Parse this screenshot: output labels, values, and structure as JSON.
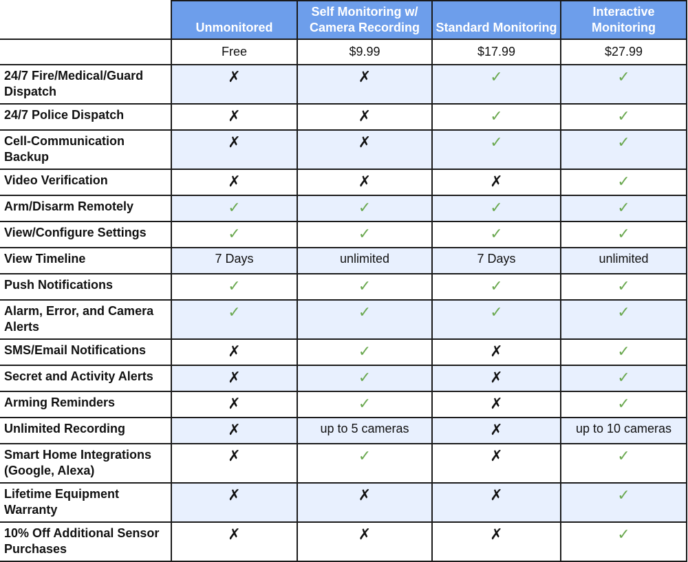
{
  "colors": {
    "header_bg": "#6d9eeb",
    "alt_row_bg": "#e8f0fe",
    "check": "#6aa84f",
    "cross": "#111111"
  },
  "icons": {
    "check": "✓",
    "x": "✗"
  },
  "plans": [
    {
      "name": "Unmonitored",
      "price": "Free"
    },
    {
      "name": "Self Monitoring w/ Camera Recording",
      "price": "$9.99"
    },
    {
      "name": "Standard Monitoring",
      "price": "$17.99"
    },
    {
      "name": "Interactive Monitoring",
      "price": "$27.99"
    }
  ],
  "features": [
    {
      "label": "24/7 Fire/Medical/Guard Dispatch",
      "values": [
        "x",
        "x",
        "check",
        "check"
      ]
    },
    {
      "label": "24/7 Police Dispatch",
      "values": [
        "x",
        "x",
        "check",
        "check"
      ]
    },
    {
      "label": "Cell-Communication Backup",
      "values": [
        "x",
        "x",
        "check",
        "check"
      ]
    },
    {
      "label": "Video Verification",
      "values": [
        "x",
        "x",
        "x",
        "check"
      ]
    },
    {
      "label": "Arm/Disarm Remotely",
      "values": [
        "check",
        "check",
        "check",
        "check"
      ]
    },
    {
      "label": "View/Configure Settings",
      "values": [
        "check",
        "check",
        "check",
        "check"
      ]
    },
    {
      "label": "View Timeline",
      "values": [
        "7 Days",
        "unlimited",
        "7 Days",
        "unlimited"
      ]
    },
    {
      "label": "Push Notifications",
      "values": [
        "check",
        "check",
        "check",
        "check"
      ]
    },
    {
      "label": "Alarm, Error, and Camera Alerts",
      "values": [
        "check",
        "check",
        "check",
        "check"
      ]
    },
    {
      "label": "SMS/Email Notifications",
      "values": [
        "x",
        "check",
        "x",
        "check"
      ]
    },
    {
      "label": "Secret and Activity Alerts",
      "values": [
        "x",
        "check",
        "x",
        "check"
      ]
    },
    {
      "label": "Arming Reminders",
      "values": [
        "x",
        "check",
        "x",
        "check"
      ]
    },
    {
      "label": "Unlimited Recording",
      "values": [
        "x",
        "up to 5 cameras",
        "x",
        "up to 10 cameras"
      ]
    },
    {
      "label": "Smart Home Integrations (Google, Alexa)",
      "values": [
        "x",
        "check",
        "x",
        "check"
      ]
    },
    {
      "label": "Lifetime Equipment Warranty",
      "values": [
        "x",
        "x",
        "x",
        "check"
      ]
    },
    {
      "label": "10% Off Additional Sensor Purchases",
      "values": [
        "x",
        "x",
        "x",
        "check"
      ]
    }
  ]
}
